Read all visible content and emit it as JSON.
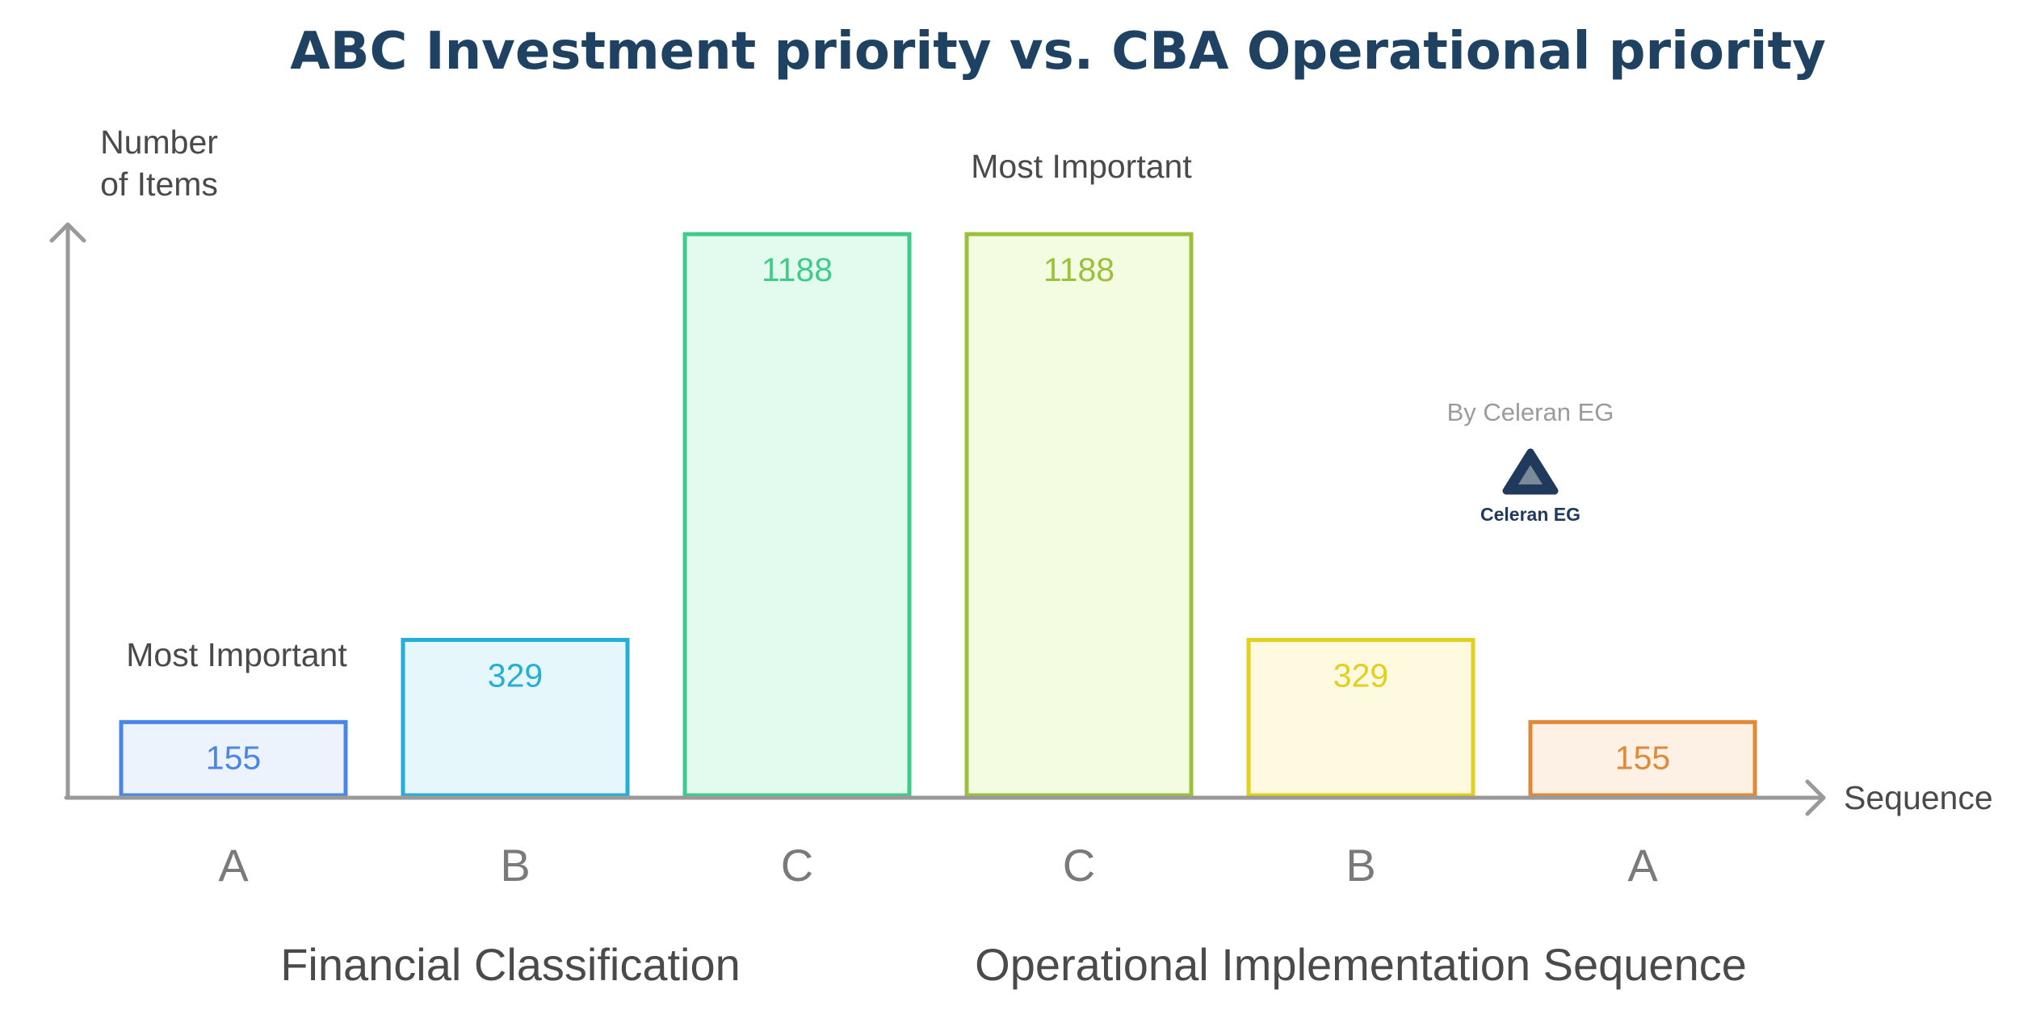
{
  "chart_data": {
    "type": "bar",
    "title": "ABC Investment priority vs. CBA Operational priority",
    "ylabel_lines": [
      "Number",
      "of Items"
    ],
    "xlabel": "Sequence",
    "categories": [
      "A",
      "B",
      "C",
      "C",
      "B",
      "A"
    ],
    "values": [
      155,
      329,
      1188,
      1188,
      329,
      155
    ],
    "ylim": [
      0,
      1188
    ],
    "bar_colors": [
      {
        "stroke": "#4a86e8",
        "fill": "#edf3fd",
        "text": "#4a86e8"
      },
      {
        "stroke": "#25aed8",
        "fill": "#e6f7fc",
        "text": "#25aed8"
      },
      {
        "stroke": "#3fcb8b",
        "fill": "#e3fbef",
        "text": "#3fcb8b"
      },
      {
        "stroke": "#9bc13c",
        "fill": "#f3fbe0",
        "text": "#9bc13c"
      },
      {
        "stroke": "#e3cf1e",
        "fill": "#fefae0",
        "text": "#e3cf1e"
      },
      {
        "stroke": "#e08a38",
        "fill": "#fdf0e4",
        "text": "#e08a38"
      }
    ],
    "groups": [
      "Financial Classification",
      "Operational Implementation Sequence"
    ],
    "annotations": [
      "Most Important",
      "Most Important"
    ],
    "grid": false,
    "axis_color": "#9a9a9a"
  },
  "watermark": {
    "byline": "By Celeran EG",
    "brand": "Celeran EG",
    "logo_icon": "triangle-logo-icon",
    "colors": {
      "dark": "#1f3a5c",
      "light": "#7a8a99"
    }
  }
}
